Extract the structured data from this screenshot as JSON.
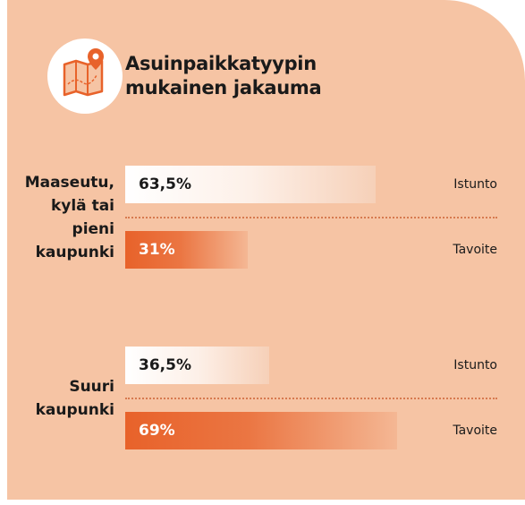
{
  "chart_data": {
    "type": "bar",
    "orientation": "horizontal",
    "title": "Asuinpaikkatyypin mukainen jakauma",
    "categories": [
      "Maaseutu, kylä tai pieni kaupunki",
      "Suuri kaupunki"
    ],
    "series": [
      {
        "name": "Istunto",
        "color": "#ffffff",
        "values": [
          63.5,
          36.5
        ],
        "value_labels": [
          "63,5%",
          "36,5%"
        ]
      },
      {
        "name": "Tavoite",
        "color": "#e8622a",
        "values": [
          31,
          69
        ],
        "value_labels": [
          "31%",
          "69%"
        ]
      }
    ],
    "xlim": [
      0,
      100
    ]
  }
}
